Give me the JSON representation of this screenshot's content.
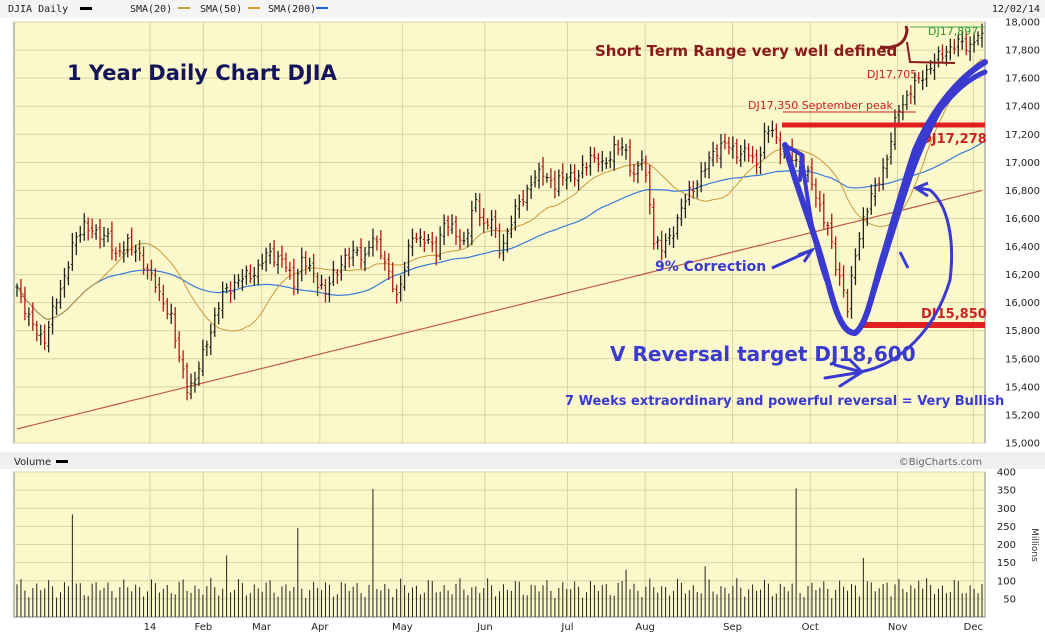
{
  "header": {
    "symbol": "DJIA Daily",
    "date": "12/02/14",
    "legend": [
      {
        "name": "SMA(20)",
        "color": "#c8a040"
      },
      {
        "name": "SMA(50)",
        "color": "#d0a030"
      },
      {
        "name": "SMA(200)",
        "color": "#2060d0"
      }
    ],
    "legend_colors": {
      "sma20": "#c8a040",
      "sma50": "#d4a028",
      "sma200": "#3070d8",
      "extra": "#c04040"
    }
  },
  "footer": {
    "volume_label": "Volume",
    "credit": "©BigCharts.com"
  },
  "annotations": {
    "title": "1 Year Daily Chart DJIA",
    "short_term": "Short Term Range very well defined",
    "dj17897": "DJ17,897",
    "dj17705": "DJ17,705",
    "sept_peak": "DJ17,350 September peak",
    "dj17278": "DJ17,278",
    "correction": "9% Correction",
    "dj15850": "DJ15,850",
    "v_reversal": "V Reversal target DJ18,600",
    "weeks": "7 Weeks extraordinary and powerful reversal = Very Bullish"
  },
  "colors": {
    "panel_bg": "#fbf8cc",
    "grid": "#d8d4a8",
    "up_bar": "#222222",
    "down_bar": "#b01818",
    "sma20": "#c89a3c",
    "sma50": "#3a7ad8",
    "sma200": "#c05a4a",
    "annot_red": "#e02020",
    "annot_blue": "#3a3ad0",
    "annot_dark": "#8b1a1a",
    "title_navy": "#14145a"
  },
  "chart_data": [
    {
      "type": "ohlc",
      "ylim": [
        15000,
        18000
      ],
      "yticks": [
        "18,000",
        "17,800",
        "17,600",
        "17,400",
        "17,200",
        "17,000",
        "16,800",
        "16,600",
        "16,400",
        "16,200",
        "16,000",
        "15,800",
        "15,600",
        "15,400",
        "15,200",
        "15,000"
      ],
      "ytick_values": [
        18000,
        17800,
        17600,
        17400,
        17200,
        17000,
        16800,
        16600,
        16400,
        16200,
        16000,
        15800,
        15600,
        15400,
        15200,
        15000
      ],
      "xticks": [
        "14",
        "Feb",
        "Mar",
        "Apr",
        "May",
        "Jun",
        "Jul",
        "Aug",
        "Sep",
        "Oct",
        "Nov",
        "Dec"
      ],
      "price_path": [
        [
          0,
          16100
        ],
        [
          4,
          15830
        ],
        [
          7,
          15740
        ],
        [
          10,
          16000
        ],
        [
          14,
          16400
        ],
        [
          17,
          16560
        ],
        [
          20,
          16470
        ],
        [
          23,
          16510
        ],
        [
          25,
          16300
        ],
        [
          28,
          16440
        ],
        [
          31,
          16320
        ],
        [
          34,
          16210
        ],
        [
          36,
          16020
        ],
        [
          39,
          15920
        ],
        [
          41,
          15600
        ],
        [
          43,
          15400
        ],
        [
          45,
          15440
        ],
        [
          47,
          15620
        ],
        [
          49,
          15830
        ],
        [
          52,
          16050
        ],
        [
          55,
          16130
        ],
        [
          58,
          16200
        ],
        [
          61,
          16240
        ],
        [
          64,
          16350
        ],
        [
          67,
          16310
        ],
        [
          70,
          16150
        ],
        [
          72,
          16280
        ],
        [
          75,
          16220
        ],
        [
          78,
          16060
        ],
        [
          80,
          16200
        ],
        [
          83,
          16300
        ],
        [
          86,
          16400
        ],
        [
          88,
          16300
        ],
        [
          90,
          16450
        ],
        [
          92,
          16380
        ],
        [
          94,
          16200
        ],
        [
          96,
          16050
        ],
        [
          98,
          16250
        ],
        [
          100,
          16450
        ],
        [
          103,
          16480
        ],
        [
          106,
          16350
        ],
        [
          108,
          16580
        ],
        [
          110,
          16510
        ],
        [
          113,
          16450
        ],
        [
          116,
          16700
        ],
        [
          118,
          16550
        ],
        [
          120,
          16600
        ],
        [
          122,
          16380
        ],
        [
          124,
          16500
        ],
        [
          127,
          16700
        ],
        [
          130,
          16870
        ],
        [
          133,
          16930
        ],
        [
          136,
          16820
        ],
        [
          139,
          16940
        ],
        [
          142,
          16880
        ],
        [
          145,
          17050
        ],
        [
          148,
          16980
        ],
        [
          151,
          17100
        ],
        [
          154,
          17060
        ],
        [
          156,
          16920
        ],
        [
          158,
          17030
        ],
        [
          160,
          16720
        ],
        [
          161,
          16440
        ],
        [
          163,
          16370
        ],
        [
          165,
          16480
        ],
        [
          167,
          16600
        ],
        [
          170,
          16780
        ],
        [
          173,
          16900
        ],
        [
          176,
          17090
        ],
        [
          179,
          17110
        ],
        [
          182,
          17080
        ],
        [
          185,
          17070
        ],
        [
          187,
          16990
        ],
        [
          189,
          17170
        ],
        [
          191,
          17240
        ],
        [
          193,
          17110
        ],
        [
          195,
          17050
        ],
        [
          197,
          17000
        ],
        [
          199,
          16950
        ],
        [
          201,
          16850
        ],
        [
          203,
          16700
        ],
        [
          205,
          16520
        ],
        [
          207,
          16250
        ],
        [
          209,
          16110
        ],
        [
          210,
          15960
        ],
        [
          212,
          16350
        ],
        [
          214,
          16600
        ],
        [
          217,
          16800
        ],
        [
          220,
          17050
        ],
        [
          223,
          17380
        ],
        [
          226,
          17500
        ],
        [
          229,
          17640
        ],
        [
          232,
          17700
        ],
        [
          235,
          17800
        ],
        [
          237,
          17830
        ],
        [
          239,
          17870
        ],
        [
          241,
          17820
        ],
        [
          243,
          17880
        ]
      ],
      "ohlc_sample": [
        {
          "label": "Oct low",
          "low": 15850
        },
        {
          "label": "Sep peak",
          "high": 17350
        },
        {
          "label": "Dec high",
          "high": 17897
        }
      ],
      "series": [
        {
          "name": "SMA(20)"
        },
        {
          "name": "SMA(50)"
        },
        {
          "name": "SMA(200)"
        }
      ],
      "horizontal_levels": [
        17278,
        15850
      ],
      "grid": true
    },
    {
      "type": "bar",
      "ylim": [
        0,
        400
      ],
      "yticks": [
        "400",
        "350",
        "300",
        "250",
        "200",
        "150",
        "100",
        "50"
      ],
      "ytick_values": [
        400,
        350,
        300,
        250,
        200,
        150,
        100,
        50
      ],
      "ylabel": "Millions",
      "spikes": [
        [
          14,
          283
        ],
        [
          53,
          170
        ],
        [
          71,
          246
        ],
        [
          90,
          353
        ],
        [
          154,
          130
        ],
        [
          174,
          140
        ],
        [
          197,
          355
        ],
        [
          214,
          163
        ],
        [
          220,
          95
        ],
        [
          228,
          100
        ]
      ],
      "baseline_volume": 80
    }
  ]
}
